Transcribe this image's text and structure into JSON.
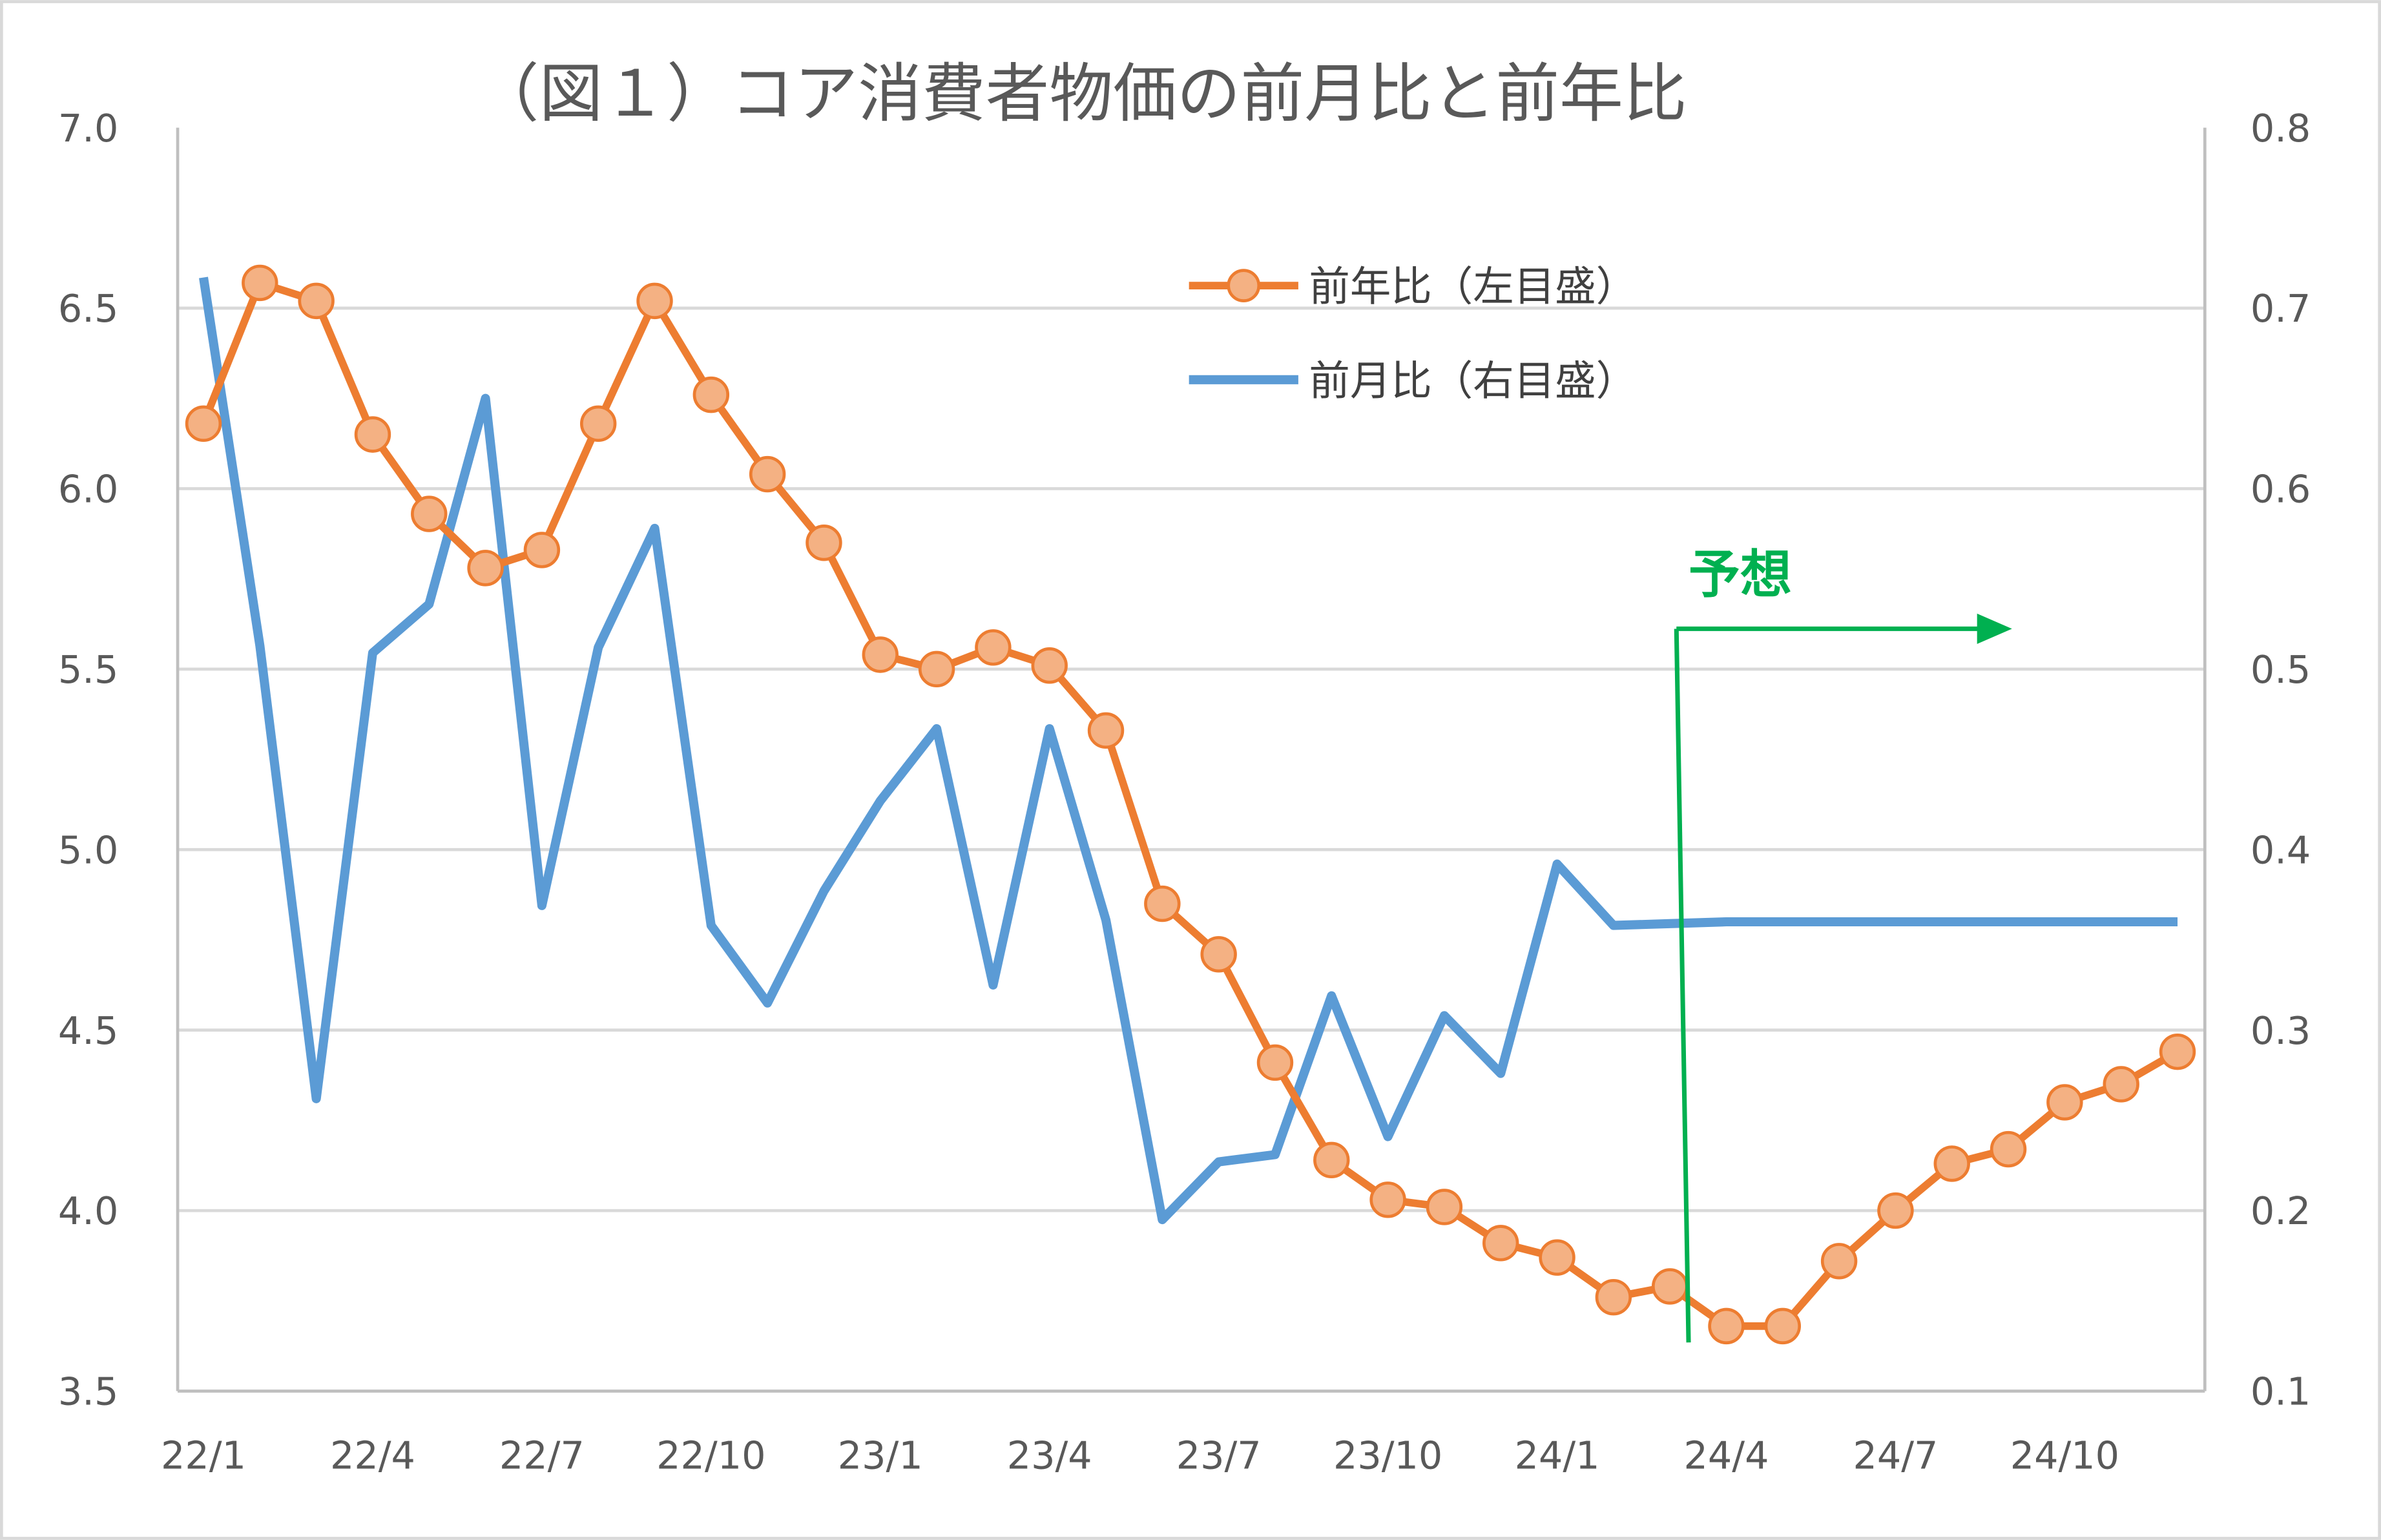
{
  "chart_data": {
    "type": "line",
    "title": "（図１）コア消費者物価の前月比と前年比",
    "x": [
      "22/1",
      "22/2",
      "22/3",
      "22/4",
      "22/5",
      "22/6",
      "22/7",
      "22/8",
      "22/9",
      "22/10",
      "22/11",
      "22/12",
      "23/1",
      "23/2",
      "23/3",
      "23/4",
      "23/5",
      "23/6",
      "23/7",
      "23/8",
      "23/9",
      "23/10",
      "23/11",
      "23/12",
      "24/1",
      "24/2",
      "24/3",
      "24/4",
      "24/5",
      "24/6",
      "24/7",
      "24/8",
      "24/9",
      "24/10",
      "24/11",
      "24/12"
    ],
    "x_tick_labels": [
      "22/1",
      "22/4",
      "22/7",
      "22/10",
      "23/1",
      "23/4",
      "23/7",
      "23/10",
      "24/1",
      "24/4",
      "24/7",
      "24/10"
    ],
    "y_left": {
      "range": [
        3.5,
        7.0
      ],
      "ticks": [
        "3.5",
        "4.0",
        "4.5",
        "5.0",
        "5.5",
        "6.0",
        "6.5",
        "7.0"
      ]
    },
    "y_right": {
      "range": [
        0.1,
        0.8
      ],
      "ticks": [
        "0.1",
        "0.2",
        "0.3",
        "0.4",
        "0.5",
        "0.6",
        "0.7",
        "0.8"
      ]
    },
    "grid": "horizontal",
    "legend_placement": "top-center",
    "series": [
      {
        "name": "前年比（左目盛）",
        "axis": "left",
        "color": "#ED7D31",
        "marker_fill": "#F4B183",
        "values": [
          6.18,
          6.57,
          6.52,
          6.15,
          5.93,
          5.78,
          5.83,
          6.18,
          6.52,
          6.26,
          6.04,
          5.85,
          5.54,
          5.5,
          5.56,
          5.51,
          5.33,
          4.85,
          4.71,
          4.41,
          4.14,
          4.03,
          4.01,
          3.91,
          3.87,
          3.76,
          3.79,
          3.68,
          3.68,
          3.86,
          4.0,
          4.13,
          4.17,
          4.3,
          4.35,
          4.44
        ]
      },
      {
        "name": "前月比（右目盛）",
        "axis": "right",
        "color": "#5B9BD5",
        "values": [
          0.717,
          0.513,
          0.262,
          0.509,
          0.536,
          0.65,
          0.369,
          0.512,
          0.578,
          0.358,
          0.315,
          0.377,
          0.427,
          0.467,
          0.325,
          0.467,
          0.361,
          0.195,
          0.227,
          0.231,
          0.319,
          0.241,
          0.308,
          0.276,
          0.392,
          0.358,
          0.359,
          0.36,
          0.36,
          0.36,
          0.36,
          0.36,
          0.36,
          0.36,
          0.36,
          0.36
        ]
      }
    ],
    "annotation": {
      "text": "予想",
      "color": "#00B050",
      "start_x": "24/3"
    }
  }
}
